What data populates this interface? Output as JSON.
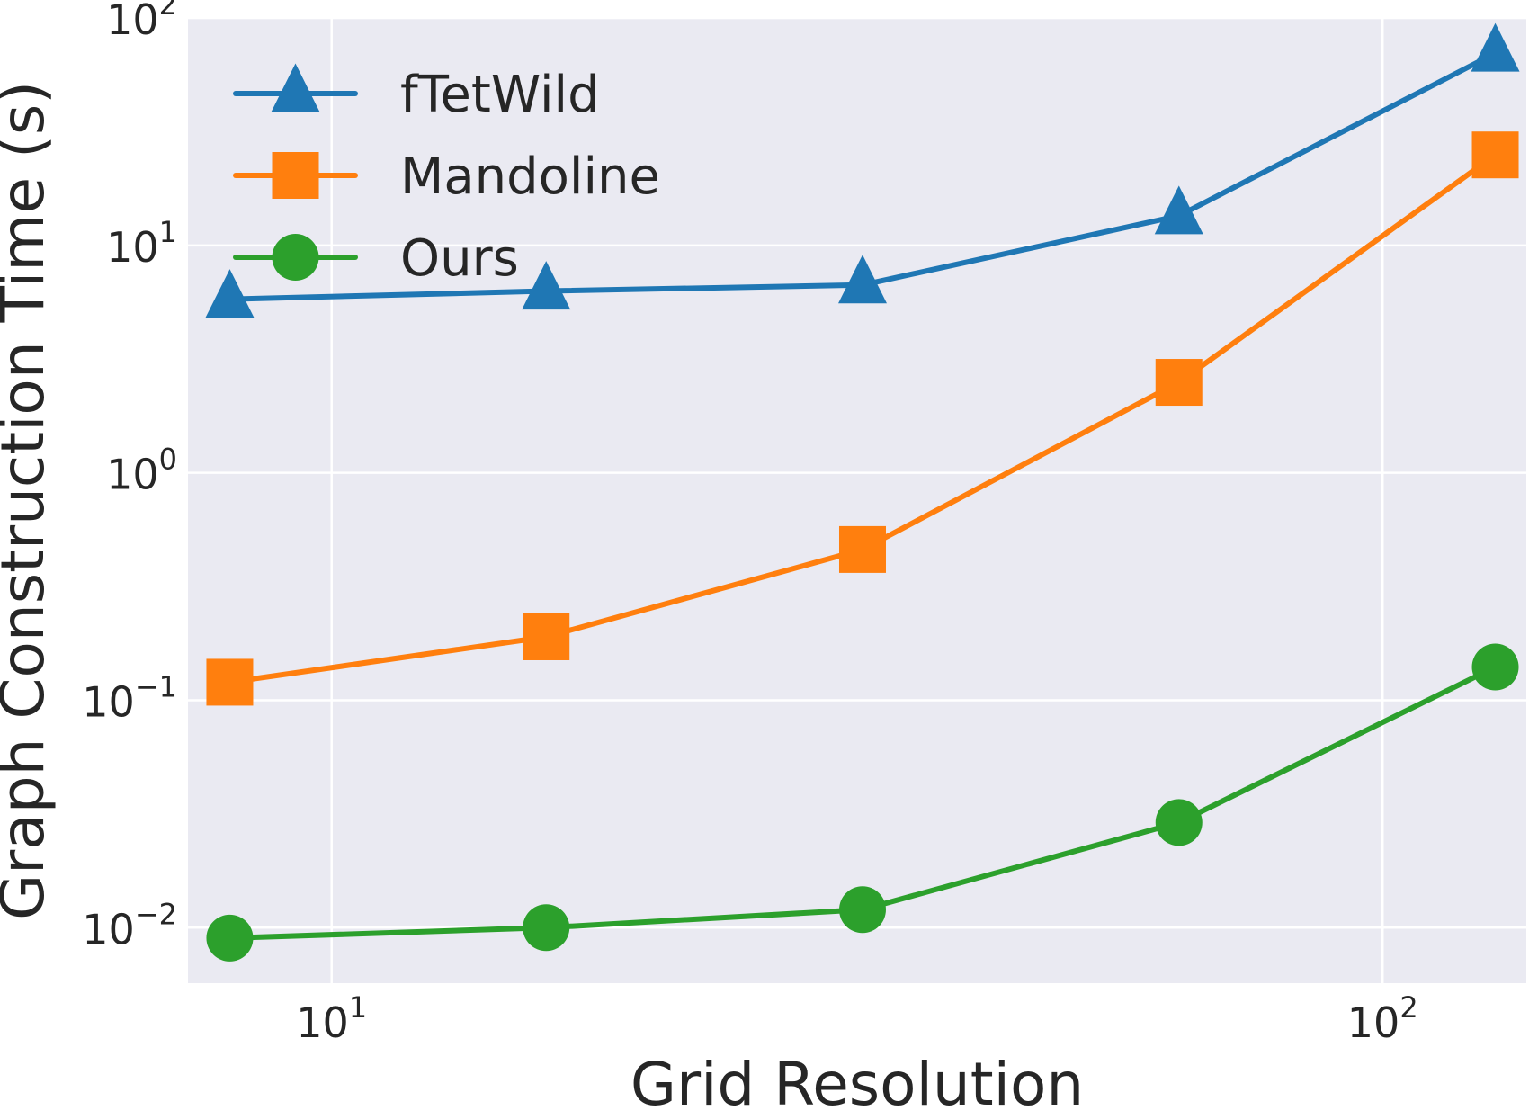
{
  "chart_data": {
    "type": "line",
    "xscale": "log",
    "yscale": "log",
    "xlabel": "Grid Resolution",
    "ylabel": "Graph Construction Time (s)",
    "xlim": [
      7.3,
      137
    ],
    "ylim": [
      0.0057,
      100
    ],
    "grid": true,
    "legend_position": "top-left",
    "x_ticks": [
      {
        "value": 10,
        "base": "10",
        "exp": "1"
      },
      {
        "value": 100,
        "base": "10",
        "exp": "2"
      }
    ],
    "y_ticks": [
      {
        "value": 0.01,
        "base": "10",
        "exp": "−2"
      },
      {
        "value": 0.1,
        "base": "10",
        "exp": "−1"
      },
      {
        "value": 1,
        "base": "10",
        "exp": "0"
      },
      {
        "value": 10,
        "base": "10",
        "exp": "1"
      },
      {
        "value": 100,
        "base": "10",
        "exp": "2"
      }
    ],
    "x": [
      8,
      16,
      32,
      64,
      128
    ],
    "series": [
      {
        "name": "fTetWild",
        "color": "#1f77b4",
        "marker": "triangle",
        "values": [
          5.8,
          6.3,
          6.7,
          13.5,
          70
        ]
      },
      {
        "name": "Mandoline",
        "color": "#ff7f0e",
        "marker": "square",
        "values": [
          0.12,
          0.19,
          0.46,
          2.5,
          25
        ]
      },
      {
        "name": "Ours",
        "color": "#2ca02c",
        "marker": "circle",
        "values": [
          0.009,
          0.01,
          0.012,
          0.029,
          0.14
        ]
      }
    ],
    "colors": {
      "plot_background": "#eaeaf2",
      "grid": "#ffffff",
      "text": "#262626"
    }
  }
}
